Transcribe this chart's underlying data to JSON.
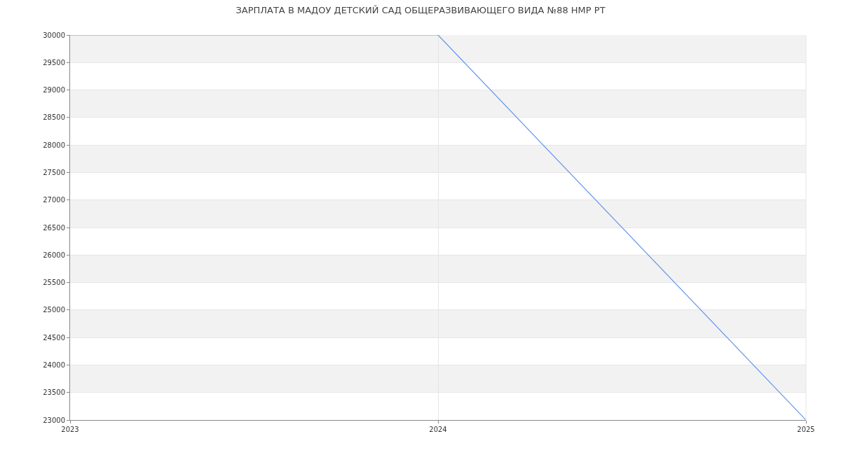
{
  "chart_data": {
    "type": "line",
    "title": "ЗАРПЛАТА В МАДОУ ДЕТСКИЙ САД ОБЩЕРАЗВИВАЮЩЕГО ВИДА №88 НМР РТ",
    "x": [
      2023,
      2024,
      2025
    ],
    "series": [
      {
        "color": "#6495ed",
        "values": [
          30000,
          30000,
          23000
        ]
      }
    ],
    "xlim": [
      2023,
      2025
    ],
    "xticks": [
      2023,
      2024,
      2025
    ],
    "ylim": [
      23000,
      30000
    ],
    "yticks": [
      23000,
      23500,
      24000,
      24500,
      25000,
      25500,
      26000,
      26500,
      27000,
      27500,
      28000,
      28500,
      29000,
      29500,
      30000
    ],
    "bands": [
      {
        "axis": "y",
        "from": 23500,
        "to": 24000,
        "color": "#f2f2f2"
      },
      {
        "axis": "y",
        "from": 24500,
        "to": 25000,
        "color": "#f2f2f2"
      },
      {
        "axis": "y",
        "from": 25500,
        "to": 26000,
        "color": "#f2f2f2"
      },
      {
        "axis": "y",
        "from": 26500,
        "to": 27000,
        "color": "#f2f2f2"
      },
      {
        "axis": "y",
        "from": 27500,
        "to": 28000,
        "color": "#f2f2f2"
      },
      {
        "axis": "y",
        "from": 28500,
        "to": 29000,
        "color": "#f2f2f2"
      },
      {
        "axis": "y",
        "from": 29500,
        "to": 30000,
        "color": "#f2f2f2"
      }
    ],
    "grid": true,
    "marker": "none",
    "line_style": "solid"
  }
}
